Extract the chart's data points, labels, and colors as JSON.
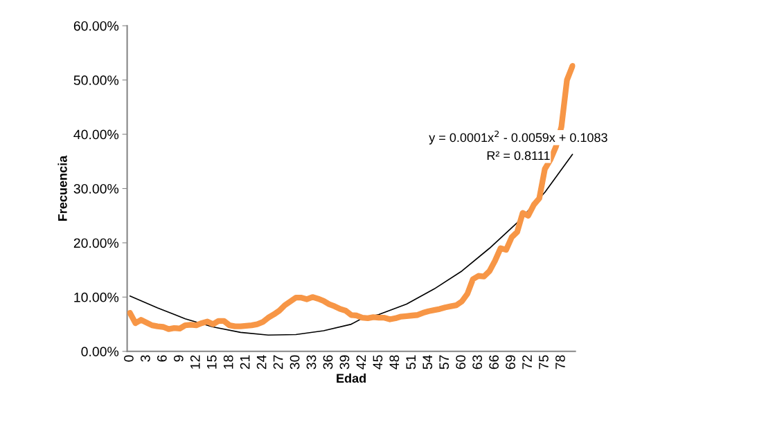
{
  "chart_data": {
    "type": "line",
    "xlabel": "Edad",
    "ylabel": "Frecuencia",
    "categories": [
      "0",
      null,
      null,
      "3",
      null,
      null,
      "6",
      null,
      null,
      "9",
      null,
      null,
      "12",
      null,
      null,
      "15",
      null,
      null,
      "18",
      null,
      null,
      "21",
      null,
      null,
      "24",
      null,
      null,
      "27",
      null,
      null,
      "30",
      null,
      null,
      "33",
      null,
      null,
      "36",
      null,
      null,
      "39",
      null,
      null,
      "42",
      null,
      null,
      "45",
      null,
      null,
      "48",
      null,
      null,
      "51",
      null,
      null,
      "54",
      null,
      null,
      "57",
      null,
      null,
      "60",
      null,
      null,
      "63",
      null,
      null,
      "66",
      null,
      null,
      "69",
      null,
      null,
      "72",
      null,
      null,
      "75",
      null,
      null,
      "78",
      null,
      null
    ],
    "series": [
      {
        "color": "#f79646",
        "values": [
          0.071,
          0.052,
          0.058,
          0.053,
          0.048,
          0.046,
          0.045,
          0.041,
          0.043,
          0.042,
          0.048,
          0.049,
          0.048,
          0.052,
          0.055,
          0.05,
          0.056,
          0.056,
          0.048,
          0.046,
          0.046,
          0.047,
          0.048,
          0.05,
          0.054,
          0.062,
          0.068,
          0.075,
          0.085,
          0.092,
          0.099,
          0.099,
          0.096,
          0.1,
          0.097,
          0.093,
          0.087,
          0.083,
          0.078,
          0.075,
          0.067,
          0.066,
          0.062,
          0.061,
          0.063,
          0.062,
          0.062,
          0.059,
          0.061,
          0.064,
          0.065,
          0.066,
          0.067,
          0.071,
          0.074,
          0.076,
          0.078,
          0.081,
          0.083,
          0.085,
          0.092,
          0.106,
          0.133,
          0.139,
          0.138,
          0.148,
          0.167,
          0.19,
          0.187,
          0.21,
          0.22,
          0.255,
          0.25,
          0.27,
          0.282,
          0.336,
          0.353,
          0.377,
          0.414,
          0.5,
          0.526
        ]
      },
      {
        "type": "line",
        "color": "#000000",
        "values": [
          0.102,
          null,
          null,
          null,
          null,
          0.08,
          null,
          null,
          null,
          null,
          0.06,
          null,
          null,
          null,
          null,
          0.045,
          null,
          null,
          null,
          null,
          0.035,
          null,
          null,
          null,
          null,
          0.03,
          null,
          null,
          null,
          null,
          0.031,
          null,
          null,
          null,
          null,
          0.038,
          null,
          null,
          null,
          null,
          0.05,
          null,
          0.061,
          null,
          null,
          0.068,
          null,
          null,
          null,
          null,
          0.087,
          null,
          null,
          null,
          null,
          0.115,
          null,
          null,
          null,
          null,
          0.148,
          null,
          null,
          null,
          null,
          0.19,
          null,
          null,
          null,
          null,
          0.237,
          null,
          null,
          null,
          null,
          0.293,
          null,
          null,
          null,
          null,
          0.363
        ]
      }
    ],
    "ylim": [
      0,
      0.6
    ],
    "yticks": [
      {
        "value": 0,
        "label": "0.00%"
      },
      {
        "value": 0.1,
        "label": "10.00%"
      },
      {
        "value": 0.2,
        "label": "20.00%"
      },
      {
        "value": 0.3,
        "label": "30.00%"
      },
      {
        "value": 0.4,
        "label": "40.00%"
      },
      {
        "value": 0.5,
        "label": "50.00%"
      },
      {
        "value": 0.6,
        "label": "60.00%"
      }
    ],
    "annotations": [
      "y = 0.0001x$^{2}$ - 0.0059x + 0.1083",
      "R² = 0.8111"
    ],
    "grid": false,
    "marker": "none",
    "line_style": "solid"
  }
}
